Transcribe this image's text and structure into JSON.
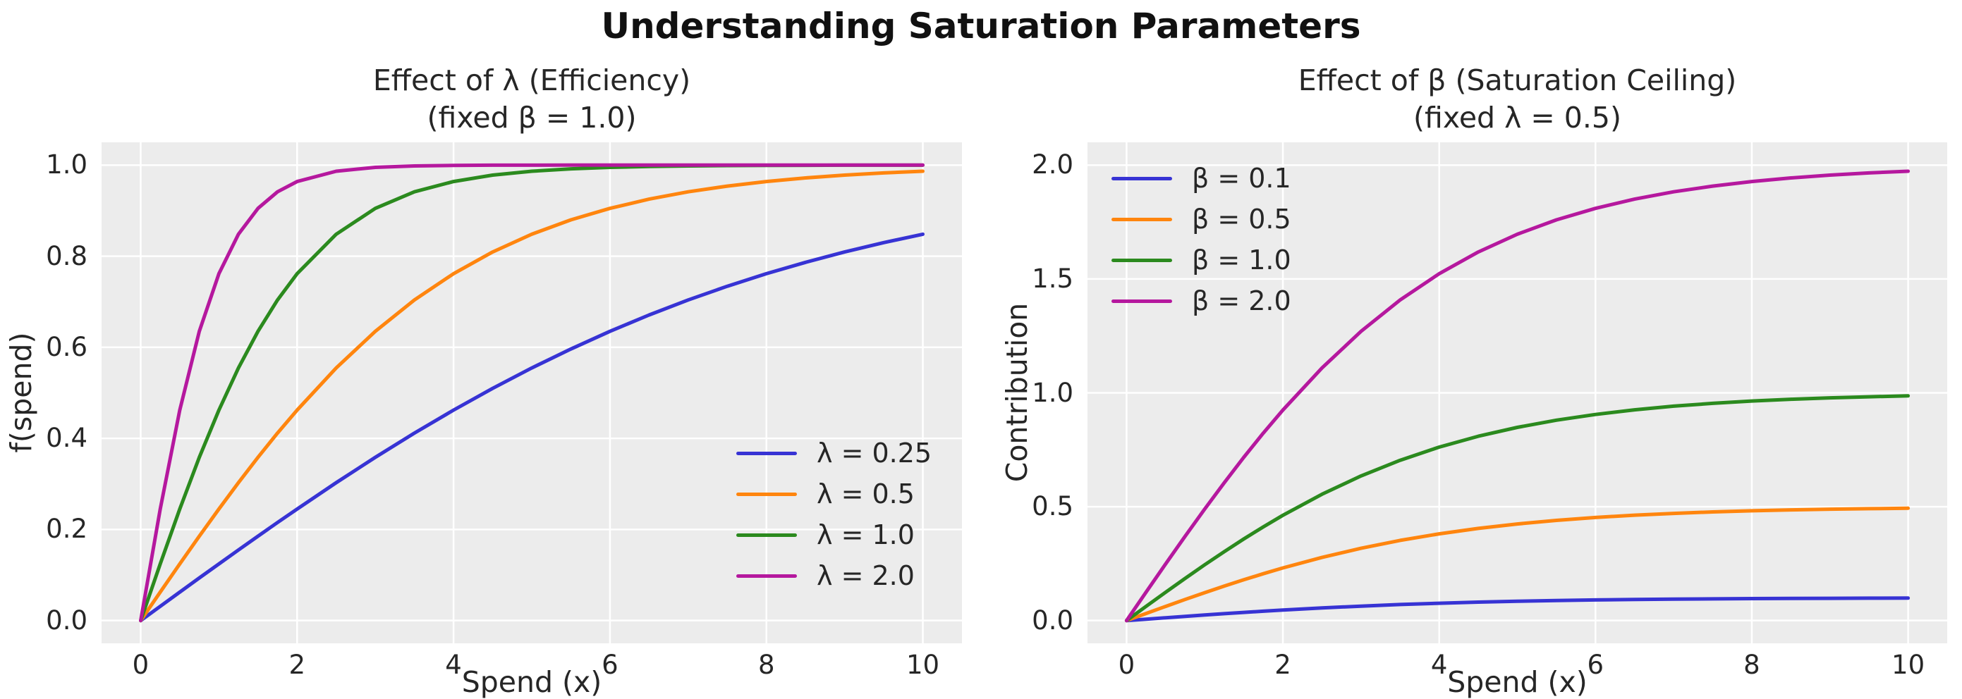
{
  "figure": {
    "suptitle": "Understanding Saturation Parameters",
    "background": "#ffffff"
  },
  "style": {
    "axes_background": "#ececec",
    "grid_color": "#ffffff",
    "text_color": "#262626",
    "suptitle_color": "#111111"
  },
  "chart_data": [
    {
      "type": "line",
      "title": "Effect of λ (Efficiency)\n(fixed β = 1.0)",
      "xlabel": "Spend (x)",
      "ylabel": "f(spend)",
      "xlim": [
        -0.5,
        10.5
      ],
      "ylim": [
        -0.05,
        1.05
      ],
      "xticks": [
        0,
        2,
        4,
        6,
        8,
        10
      ],
      "xtick_labels": [
        "0",
        "2",
        "4",
        "6",
        "8",
        "10"
      ],
      "yticks": [
        0.0,
        0.2,
        0.4,
        0.6,
        0.8,
        1.0
      ],
      "ytick_labels": [
        "0.0",
        "0.2",
        "0.4",
        "0.6",
        "0.8",
        "1.0"
      ],
      "grid": true,
      "legend_position": "lower right",
      "x": [
        0,
        0.25,
        0.5,
        0.75,
        1,
        1.25,
        1.5,
        1.75,
        2,
        2.5,
        3,
        3.5,
        4,
        4.5,
        5,
        5.5,
        6,
        6.5,
        7,
        7.5,
        8,
        8.5,
        9,
        9.5,
        10
      ],
      "series": [
        {
          "name": "λ = 0.25",
          "color": "#3733d4",
          "values": [
            0,
            0.0312,
            0.0624,
            0.0935,
            0.1244,
            0.155,
            0.1853,
            0.2153,
            0.2449,
            0.3027,
            0.3584,
            0.4116,
            0.4621,
            0.5098,
            0.5546,
            0.5963,
            0.6351,
            0.671,
            0.7039,
            0.7341,
            0.7616,
            0.7866,
            0.8093,
            0.8298,
            0.8483
          ]
        },
        {
          "name": "λ = 0.5",
          "color": "#ff850e",
          "values": [
            0,
            0.0624,
            0.1244,
            0.1853,
            0.2449,
            0.3027,
            0.3584,
            0.4116,
            0.4621,
            0.5546,
            0.6351,
            0.7039,
            0.7616,
            0.8093,
            0.8483,
            0.8798,
            0.9051,
            0.9253,
            0.9414,
            0.954,
            0.964,
            0.9719,
            0.978,
            0.9828,
            0.9866
          ]
        },
        {
          "name": "λ = 1.0",
          "color": "#2b8a1e",
          "values": [
            0,
            0.1244,
            0.2449,
            0.3584,
            0.4621,
            0.5546,
            0.6351,
            0.7039,
            0.7616,
            0.8483,
            0.9051,
            0.9414,
            0.964,
            0.978,
            0.9866,
            0.9919,
            0.9951,
            0.997,
            0.9982,
            0.9989,
            0.9993,
            0.9996,
            0.9998,
            0.9999,
            0.9999
          ]
        },
        {
          "name": "λ = 2.0",
          "color": "#b5189e",
          "values": [
            0,
            0.2449,
            0.4621,
            0.6351,
            0.7616,
            0.8483,
            0.9051,
            0.9414,
            0.964,
            0.9866,
            0.9951,
            0.9982,
            0.9993,
            0.9998,
            0.9999,
            1.0,
            1.0,
            1.0,
            1.0,
            1.0,
            1.0,
            1.0,
            1.0,
            1.0,
            1.0
          ]
        }
      ]
    },
    {
      "type": "line",
      "title": "Effect of β (Saturation Ceiling)\n(fixed λ = 0.5)",
      "xlabel": "Spend (x)",
      "ylabel": "Contribution",
      "xlim": [
        -0.5,
        10.5
      ],
      "ylim": [
        -0.1,
        2.1
      ],
      "xticks": [
        0,
        2,
        4,
        6,
        8,
        10
      ],
      "xtick_labels": [
        "0",
        "2",
        "4",
        "6",
        "8",
        "10"
      ],
      "yticks": [
        0.0,
        0.5,
        1.0,
        1.5,
        2.0
      ],
      "ytick_labels": [
        "0.0",
        "0.5",
        "1.0",
        "1.5",
        "2.0"
      ],
      "grid": true,
      "legend_position": "upper left",
      "x": [
        0,
        0.25,
        0.5,
        0.75,
        1,
        1.25,
        1.5,
        1.75,
        2,
        2.5,
        3,
        3.5,
        4,
        4.5,
        5,
        5.5,
        6,
        6.5,
        7,
        7.5,
        8,
        8.5,
        9,
        9.5,
        10
      ],
      "series": [
        {
          "name": "β = 0.1",
          "color": "#3733d4",
          "values": [
            0,
            0.0062,
            0.0124,
            0.0185,
            0.0245,
            0.0303,
            0.0358,
            0.0412,
            0.0462,
            0.0555,
            0.0635,
            0.0704,
            0.0762,
            0.0809,
            0.0848,
            0.088,
            0.0905,
            0.0925,
            0.0941,
            0.0954,
            0.0964,
            0.0972,
            0.0978,
            0.0983,
            0.0987
          ]
        },
        {
          "name": "β = 0.5",
          "color": "#ff850e",
          "values": [
            0,
            0.0312,
            0.0622,
            0.0927,
            0.1224,
            0.1513,
            0.1792,
            0.2058,
            0.2311,
            0.2773,
            0.3175,
            0.352,
            0.3808,
            0.4046,
            0.4242,
            0.4399,
            0.4526,
            0.4627,
            0.4707,
            0.477,
            0.482,
            0.486,
            0.489,
            0.4914,
            0.4933
          ]
        },
        {
          "name": "β = 1.0",
          "color": "#2b8a1e",
          "values": [
            0,
            0.0624,
            0.1244,
            0.1853,
            0.2449,
            0.3027,
            0.3584,
            0.4116,
            0.4621,
            0.5546,
            0.6351,
            0.7039,
            0.7616,
            0.8093,
            0.8483,
            0.8798,
            0.9051,
            0.9253,
            0.9414,
            0.954,
            0.964,
            0.9719,
            0.978,
            0.9828,
            0.9866
          ]
        },
        {
          "name": "β = 2.0",
          "color": "#b5189e",
          "values": [
            0,
            0.1248,
            0.2488,
            0.3706,
            0.4898,
            0.6053,
            0.7168,
            0.8232,
            0.9242,
            1.1092,
            1.2702,
            1.4078,
            1.5232,
            1.6186,
            1.6966,
            1.7596,
            1.8102,
            1.8506,
            1.8828,
            1.908,
            1.928,
            1.9438,
            1.956,
            1.9656,
            1.9731
          ]
        }
      ]
    }
  ]
}
